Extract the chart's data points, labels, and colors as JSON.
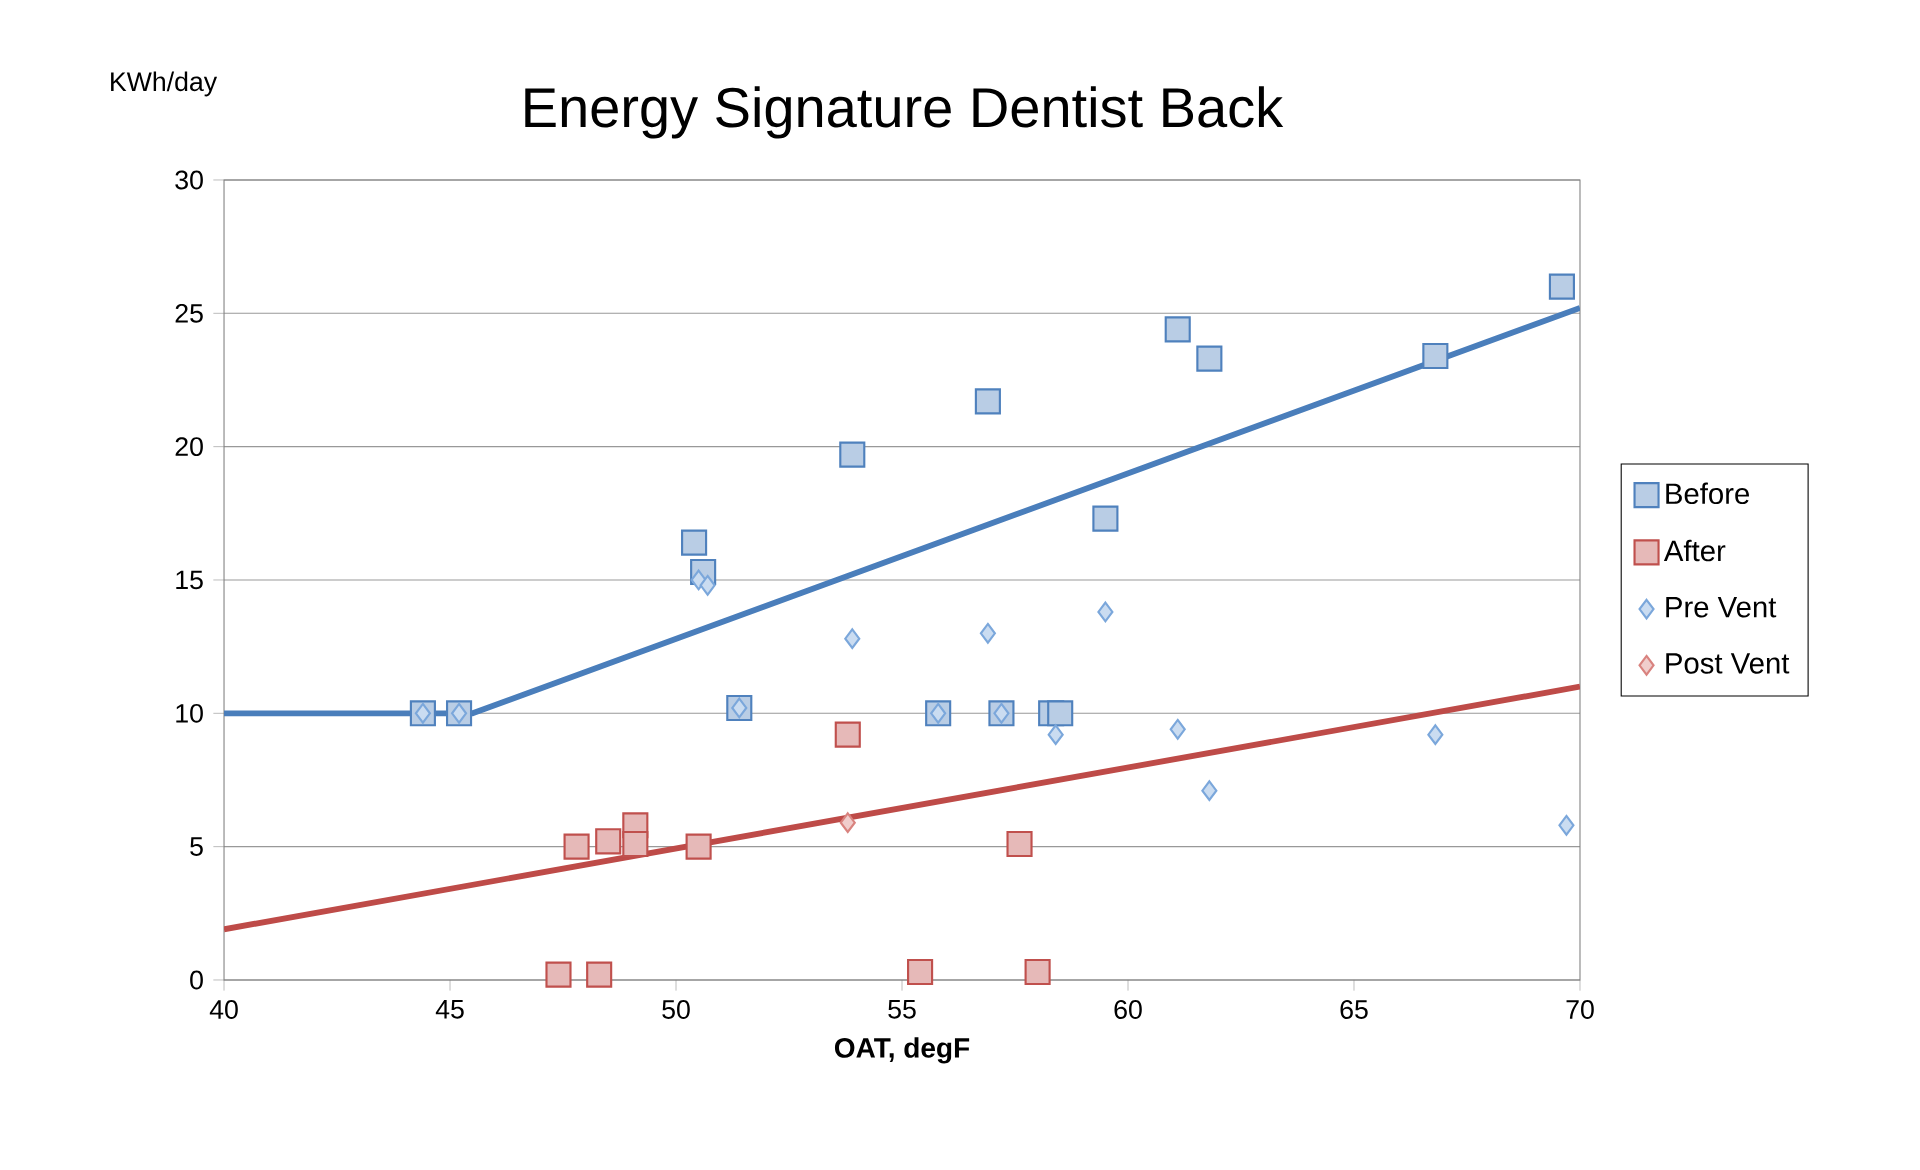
{
  "chart_data": {
    "type": "scatter",
    "title": "Energy Signature Dentist Back",
    "xlabel": "OAT, degF",
    "ylabel": "KWh/day",
    "xlim": [
      40,
      70
    ],
    "xticks": [
      40,
      45,
      50,
      55,
      60,
      65,
      70
    ],
    "ylim": [
      0,
      30
    ],
    "yticks": [
      0,
      5,
      10,
      15,
      20,
      25,
      30
    ],
    "grid": "y",
    "legend": "right",
    "series": [
      {
        "name": "Before",
        "color": "#4f81bd",
        "marker": "square",
        "x": [
          44.4,
          45.2,
          50.4,
          50.6,
          51.4,
          53.9,
          56.9,
          55.8,
          57.2,
          58.3,
          58.5,
          59.5,
          61.1,
          61.8,
          66.8,
          69.6
        ],
        "values": [
          10,
          10,
          16.4,
          15.3,
          10.2,
          19.7,
          21.7,
          10,
          10,
          10,
          10,
          17.3,
          24.4,
          23.3,
          23.4,
          26
        ]
      },
      {
        "name": "After",
        "color": "#c0504d",
        "marker": "square",
        "x": [
          47.4,
          48.3,
          47.8,
          48.5,
          49.1,
          49.1,
          50.5,
          53.8,
          57.6,
          55.4,
          58
        ],
        "values": [
          0.2,
          0.2,
          5,
          5.2,
          5.8,
          5.1,
          5,
          9.2,
          5.1,
          0.3,
          0.3
        ]
      },
      {
        "name": "Pre Vent",
        "color": "#7ba7db",
        "marker": "diamond",
        "x": [
          44.4,
          45.2,
          50.5,
          50.7,
          51.4,
          53.9,
          56.9,
          59.5,
          55.8,
          57.2,
          58.4,
          61.1,
          61.8,
          66.8,
          69.7
        ],
        "values": [
          10,
          10,
          15,
          14.8,
          10.2,
          12.8,
          13,
          13.8,
          10,
          10,
          9.2,
          9.4,
          7.1,
          9.2,
          5.8
        ]
      },
      {
        "name": "Post Vent",
        "color": "#d9837f",
        "marker": "diamond",
        "x": [
          53.8
        ],
        "values": [
          5.9
        ]
      },
      {
        "type": "line",
        "color": "#4a7ebb",
        "marker": "none",
        "x": [
          40,
          45.5,
          70
        ],
        "values": [
          10,
          10,
          25.2
        ]
      },
      {
        "type": "line",
        "color": "#be4b48",
        "marker": "none",
        "x": [
          40,
          70
        ],
        "values": [
          1.9,
          11
        ]
      }
    ]
  }
}
